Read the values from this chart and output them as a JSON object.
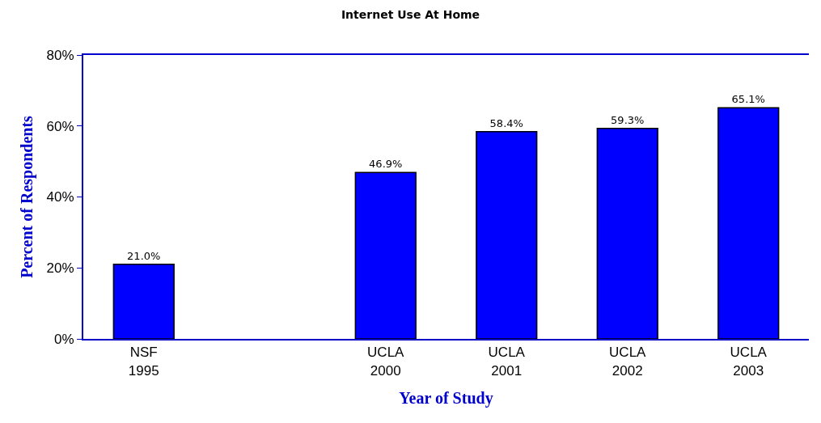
{
  "chart_data": {
    "type": "bar",
    "title": "Internet Use At Home",
    "xlabel": "Year of Study",
    "ylabel": "Percent of Respondents",
    "categories": [
      "NSF\n1995",
      null,
      "UCLA\n2000",
      "UCLA\n2001",
      "UCLA\n2002",
      "UCLA\n2003"
    ],
    "values": [
      21.0,
      null,
      46.9,
      58.4,
      59.3,
      65.1
    ],
    "value_labels": [
      "21.0%",
      null,
      "46.9%",
      "58.4%",
      "59.3%",
      "65.1%"
    ],
    "color": "#0000ff",
    "ylim": [
      0,
      80
    ],
    "yticks": [
      {
        "value": 0,
        "label": "0%"
      },
      {
        "value": 20,
        "label": "20%"
      },
      {
        "value": 40,
        "label": "40%"
      },
      {
        "value": 60,
        "label": "60%"
      },
      {
        "value": 80,
        "label": "80%"
      }
    ],
    "grid": false
  }
}
